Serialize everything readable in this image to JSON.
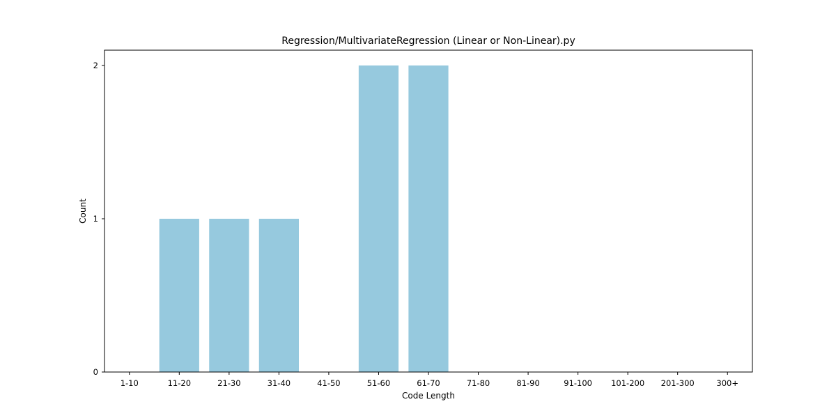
{
  "chart_data": {
    "type": "bar",
    "title": "Regression/MultivariateRegression (Linear or Non-Linear).py",
    "xlabel": "Code Length",
    "ylabel": "Count",
    "categories": [
      "1-10",
      "11-20",
      "21-30",
      "31-40",
      "41-50",
      "51-60",
      "61-70",
      "71-80",
      "81-90",
      "91-100",
      "101-200",
      "201-300",
      "300+"
    ],
    "values": [
      0,
      1,
      1,
      1,
      0,
      2,
      2,
      0,
      0,
      0,
      0,
      0,
      0
    ],
    "yticks": [
      0,
      1,
      2
    ],
    "ylim": [
      0,
      2.1
    ],
    "grid": false,
    "legend": "none",
    "bar_color": "#96c9de"
  }
}
